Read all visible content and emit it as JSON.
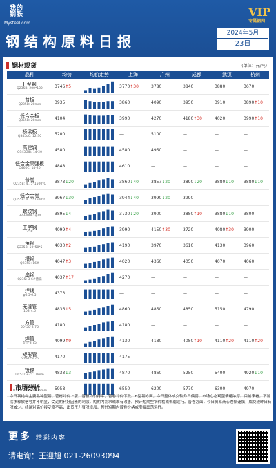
{
  "header": {
    "logo_line1": "我的",
    "logo_line2": "钢铁",
    "logo_site": "Mysteel.com",
    "vip_label": "VIP",
    "vip_sub": "专属钢网",
    "title": "钢结构原料日报",
    "month": "2024年5月",
    "day": "23日"
  },
  "spot": {
    "section_title": "钢材现货",
    "unit": "(单位：元/吨)",
    "columns": [
      "品种",
      "均价",
      "均价走势",
      "上海",
      "广州",
      "成都",
      "武汉",
      "杭州"
    ],
    "rows": [
      {
        "name": "H型钢",
        "spec": "Q235B: 200*100",
        "avg": "3746",
        "avg_chg": "↑5",
        "trend": [
          0.2,
          0.35,
          0.3,
          0.4,
          0.5,
          0.7,
          0.9
        ],
        "sh": "3770",
        "sh_chg": "↑30",
        "gz": "3780",
        "gz_chg": "",
        "cd": "3840",
        "cd_chg": "",
        "wh": "3880",
        "wh_chg": "",
        "hz": "3670",
        "hz_chg": ""
      },
      {
        "name": "普板",
        "spec": "Q235B: 20mm",
        "avg": "3935",
        "avg_chg": "",
        "trend": [
          0.7,
          0.6,
          0.55,
          0.5,
          0.55,
          0.6,
          0.6
        ],
        "sh": "3860",
        "sh_chg": "",
        "gz": "4090",
        "gz_chg": "",
        "cd": "3950",
        "cd_chg": "",
        "wh": "3910",
        "wh_chg": "",
        "hz": "3890",
        "hz_chg": "↑10"
      },
      {
        "name": "低合金板",
        "spec": "Q355B: 20mm",
        "avg": "4104",
        "avg_chg": "",
        "trend": [
          0.8,
          0.75,
          0.7,
          0.7,
          0.7,
          0.75,
          0.75
        ],
        "sh": "3990",
        "sh_chg": "",
        "gz": "4270",
        "gz_chg": "",
        "cd": "4180",
        "cd_chg": "↑30",
        "wh": "4020",
        "wh_chg": "",
        "hz": "3990",
        "hz_chg": "↑10"
      },
      {
        "name": "桥梁板",
        "spec": "Q345qC: 12-30",
        "avg": "5200",
        "avg_chg": "",
        "trend": [
          0.9,
          0.9,
          0.9,
          0.9,
          0.9,
          0.9,
          0.9
        ],
        "sh": "",
        "sh_chg": "",
        "gz": "5100",
        "gz_chg": "",
        "cd": "",
        "cd_chg": "",
        "wh": "",
        "wh_chg": "",
        "hz": ""
      },
      {
        "name": "高建钢",
        "spec": "Q345GJB: 14-20",
        "avg": "4580",
        "avg_chg": "",
        "trend": [
          0.8,
          0.8,
          0.8,
          0.8,
          0.8,
          0.8,
          0.8
        ],
        "sh": "4580",
        "sh_chg": "",
        "gz": "4950",
        "gz_chg": "",
        "cd": "",
        "cd_chg": "",
        "wh": "",
        "wh_chg": "",
        "hz": ""
      },
      {
        "name": "低合金高强板",
        "spec": "Q460C: 14-20",
        "avg": "4848",
        "avg_chg": "",
        "trend": [
          0.85,
          0.85,
          0.85,
          0.85,
          0.85,
          0.85,
          0.85
        ],
        "sh": "4610",
        "sh_chg": "",
        "gz": "",
        "gz_chg": "",
        "cd": "",
        "cd_chg": "",
        "wh": "",
        "wh_chg": "",
        "hz": ""
      },
      {
        "name": "普卷",
        "spec": "Q235B: 4.75*1500*C",
        "avg": "3873",
        "avg_chg": "↓20",
        "trend": [
          0.3,
          0.4,
          0.5,
          0.6,
          0.7,
          0.8,
          0.7
        ],
        "sh": "3860",
        "sh_chg": "↓40",
        "gz": "3857",
        "gz_chg": "↓20",
        "cd": "3890",
        "cd_chg": "↓20",
        "wh": "3880",
        "wh_chg": "↓10",
        "hz": "3880",
        "hz_chg": "↓10"
      },
      {
        "name": "低合金卷",
        "spec": "Q355B: 4.75*1500*C",
        "avg": "3967",
        "avg_chg": "↓30",
        "trend": [
          0.3,
          0.45,
          0.55,
          0.65,
          0.75,
          0.85,
          0.75
        ],
        "sh": "3944",
        "sh_chg": "↓40",
        "gz": "3990",
        "gz_chg": "↓20",
        "cd": "3990",
        "cd_chg": "",
        "wh": "",
        "wh_chg": "",
        "hz": ""
      },
      {
        "name": "螺纹钢",
        "spec": "HRB400E: φ20",
        "avg": "3895",
        "avg_chg": "↓4",
        "trend": [
          0.3,
          0.4,
          0.5,
          0.6,
          0.7,
          0.8,
          0.75
        ],
        "sh": "3730",
        "sh_chg": "↓20",
        "gz": "3900",
        "gz_chg": "",
        "cd": "3880",
        "cd_chg": "↑10",
        "wh": "3880",
        "wh_chg": "↓10",
        "hz": "3800",
        "hz_chg": ""
      },
      {
        "name": "工字钢",
        "spec": "25#",
        "avg": "4099",
        "avg_chg": "↑4",
        "trend": [
          0.3,
          0.35,
          0.4,
          0.5,
          0.6,
          0.7,
          0.75
        ],
        "sh": "3990",
        "sh_chg": "",
        "gz": "4150",
        "gz_chg": "↑30",
        "cd": "3720",
        "cd_chg": "",
        "wh": "4080",
        "wh_chg": "↑30",
        "hz": "3900",
        "hz_chg": ""
      },
      {
        "name": "角钢",
        "spec": "Q235B: 50*50*5",
        "avg": "4030",
        "avg_chg": "↑2",
        "trend": [
          0.3,
          0.35,
          0.4,
          0.5,
          0.6,
          0.7,
          0.75
        ],
        "sh": "4190",
        "sh_chg": "",
        "gz": "3970",
        "gz_chg": "",
        "cd": "3610",
        "cd_chg": "",
        "wh": "4130",
        "wh_chg": "",
        "hz": "3960",
        "hz_chg": ""
      },
      {
        "name": "槽钢",
        "spec": "Q235B: 16#",
        "avg": "4047",
        "avg_chg": "↑3",
        "trend": [
          0.3,
          0.35,
          0.45,
          0.55,
          0.65,
          0.75,
          0.8
        ],
        "sh": "4020",
        "sh_chg": "",
        "gz": "4360",
        "gz_chg": "",
        "cd": "4050",
        "cd_chg": "",
        "wh": "4070",
        "wh_chg": "",
        "hz": "4060",
        "hz_chg": ""
      },
      {
        "name": "扁钢",
        "spec": "Q235: 3-6#普扁",
        "avg": "4037",
        "avg_chg": "↑17",
        "trend": [
          0.25,
          0.3,
          0.4,
          0.5,
          0.6,
          0.75,
          0.85
        ],
        "sh": "4270",
        "sh_chg": "",
        "gz": "",
        "gz_chg": "",
        "cd": "",
        "cd_chg": "",
        "wh": "",
        "wh_chg": "",
        "hz": ""
      },
      {
        "name": "焊线",
        "spec": "φ6.5-6.5",
        "avg": "4373",
        "avg_chg": "",
        "trend": [
          0.8,
          0.8,
          0.8,
          0.8,
          0.8,
          0.8,
          0.8
        ],
        "sh": "",
        "sh_chg": "",
        "gz": "",
        "gz_chg": "",
        "cd": "",
        "cd_chg": "",
        "wh": "",
        "wh_chg": "",
        "hz": ""
      },
      {
        "name": "无缝管",
        "spec": "108*4.5",
        "avg": "4836",
        "avg_chg": "↑5",
        "trend": [
          0.3,
          0.35,
          0.45,
          0.55,
          0.65,
          0.75,
          0.85
        ],
        "sh": "4860",
        "sh_chg": "",
        "gz": "4850",
        "gz_chg": "",
        "cd": "4850",
        "cd_chg": "",
        "wh": "5150",
        "wh_chg": "",
        "hz": "4790",
        "hz_chg": ""
      },
      {
        "name": "方管",
        "spec": "50*50*2.75",
        "avg": "4180",
        "avg_chg": "",
        "trend": [
          0.3,
          0.4,
          0.5,
          0.6,
          0.7,
          0.75,
          0.8
        ],
        "sh": "4180",
        "sh_chg": "",
        "gz": "",
        "gz_chg": "",
        "cd": "",
        "cd_chg": "",
        "wh": "",
        "wh_chg": "",
        "hz": ""
      },
      {
        "name": "焊管",
        "spec": "4寸*3.75",
        "avg": "4099",
        "avg_chg": "↑9",
        "trend": [
          0.3,
          0.4,
          0.5,
          0.6,
          0.7,
          0.8,
          0.85
        ],
        "sh": "4130",
        "sh_chg": "",
        "gz": "4180",
        "gz_chg": "",
        "cd": "4080",
        "cd_chg": "↑10",
        "wh": "4110",
        "wh_chg": "↑20",
        "hz": "4110",
        "hz_chg": "↑20"
      },
      {
        "name": "矩形管",
        "spec": "60*80*3.75",
        "avg": "4170",
        "avg_chg": "",
        "trend": [
          0.8,
          0.8,
          0.8,
          0.8,
          0.8,
          0.8,
          0.8
        ],
        "sh": "4175",
        "sh_chg": "",
        "gz": "",
        "gz_chg": "",
        "cd": "",
        "cd_chg": "",
        "wh": "",
        "wh_chg": "",
        "hz": ""
      },
      {
        "name": "镀锌",
        "spec": "DX51D+Z: 1.0mm",
        "avg": "4833",
        "avg_chg": "↓3",
        "trend": [
          0.5,
          0.55,
          0.6,
          0.7,
          0.75,
          0.8,
          0.8
        ],
        "sh": "4870",
        "sh_chg": "",
        "gz": "4860",
        "gz_chg": "",
        "cd": "5250",
        "cd_chg": "",
        "wh": "5400",
        "wh_chg": "",
        "hz": "4920",
        "hz_chg": "↓10"
      },
      {
        "name": "彩涂",
        "spec": "TDC51D+Z: 0.476mm",
        "avg": "5958",
        "avg_chg": "",
        "trend": [
          0.9,
          0.9,
          0.9,
          0.9,
          0.9,
          0.9,
          0.9
        ],
        "sh": "6550",
        "sh_chg": "",
        "gz": "6200",
        "gz_chg": "",
        "cd": "5770",
        "cd_chg": "",
        "wh": "6300",
        "wh_chg": "",
        "hz": "4970",
        "hz_chg": ""
      }
    ]
  },
  "analysis": {
    "section_title": "市场分析",
    "text": "今日钢结构主要品种型钢、管材均价上涨，普板均价持平，普卷均价下跌。H型钢方面，今日整体成交较昨日偏弱，市场心态观望情绪浓厚。目前来看，下游需求释放信号并不明显，受近期利好因素的刺激，短期内需求或难有改善。预计短期型钢价格或偏弱运行。普卷方面，今日贸易商心态偏谨慎，成交较昨日有所减少，终端对高价接受度不高，出货压力有所增加，预计短期内普卷价格或窄幅震荡运行。"
  },
  "footer": {
    "more": "更多",
    "more_sub": "精彩内容",
    "contact": "请电询：王迎旭 021-26093094"
  },
  "colors": {
    "brand_blue": "#1b4f95",
    "up": "#d4281f",
    "down": "#2a9a3a",
    "accent": "#c9302c"
  }
}
